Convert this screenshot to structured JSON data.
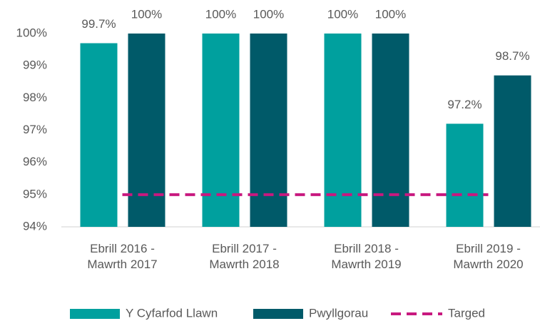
{
  "chart_data": {
    "type": "bar",
    "categories": [
      "Ebrill 2016 - Mawrth 2017",
      "Ebrill 2017 - Mawrth 2018",
      "Ebrill 2018 - Mawrth 2019",
      "Ebrill 2019 - Mawrth 2020"
    ],
    "series": [
      {
        "name": "Y Cyfarfod Llawn",
        "color": "#00a09e",
        "values": [
          99.7,
          100,
          100,
          97.2
        ],
        "value_labels": [
          "99.7%",
          "100%",
          "100%",
          "97.2%"
        ]
      },
      {
        "name": "Pwyllgorau",
        "color": "#005a69",
        "values": [
          100,
          100,
          100,
          98.7
        ],
        "value_labels": [
          "100%",
          "100%",
          "100%",
          "98.7%"
        ]
      },
      {
        "name": "Targed",
        "color": "#c8197f",
        "type": "line",
        "dashed": true,
        "values": [
          95,
          95,
          95,
          95
        ]
      }
    ],
    "ylim": [
      94,
      100
    ],
    "yticks": [
      {
        "value": 94,
        "label": "94%"
      },
      {
        "value": 95,
        "label": "95%"
      },
      {
        "value": 96,
        "label": "96%"
      },
      {
        "value": 97,
        "label": "97%"
      },
      {
        "value": 98,
        "label": "98%"
      },
      {
        "value": 99,
        "label": "99%"
      },
      {
        "value": 100,
        "label": "100%"
      }
    ],
    "grid": false,
    "legend": "bottom"
  }
}
